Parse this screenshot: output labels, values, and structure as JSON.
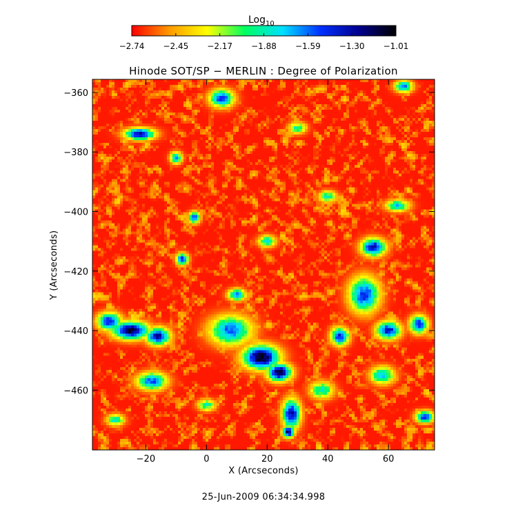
{
  "colorbar": {
    "label_base": "Log",
    "label_sub": "10",
    "ticks": [
      "−2.74",
      "−2.45",
      "−2.17",
      "−1.88",
      "−1.59",
      "−1.30",
      "−1.01"
    ],
    "range": [
      -2.74,
      -1.01
    ],
    "colors": [
      "#ff0000",
      "#ff9a00",
      "#ffff00",
      "#00ff60",
      "#00e0ff",
      "#0030ff",
      "#000090",
      "#000000"
    ]
  },
  "timestamp": "25-Jun-2009 06:34:34.998",
  "chart_data": {
    "type": "heatmap",
    "title": "Hinode SOT/SP − MERLIN : Degree of Polarization",
    "xlabel": "X (Arcseconds)",
    "ylabel": "Y (Arcseconds)",
    "xlim": [
      -37.6,
      75.2
    ],
    "ylim": [
      -480.1,
      -355.6
    ],
    "x_ticks": [
      -20,
      0,
      20,
      40,
      60
    ],
    "x_tick_labels": [
      "−20",
      "0",
      "20",
      "40",
      "60"
    ],
    "y_ticks": [
      -460,
      -440,
      -420,
      -400,
      -380,
      -360
    ],
    "y_tick_labels": [
      "−460",
      "−440",
      "−420",
      "−400",
      "−380",
      "−360"
    ],
    "value_range": [
      -2.74,
      -1.01
    ],
    "background_level": -2.7,
    "features": [
      {
        "x": 18,
        "y": -449,
        "rx": 6,
        "ry": 4,
        "peak": -1.05
      },
      {
        "x": 24,
        "y": -454,
        "rx": 4,
        "ry": 3,
        "peak": -1.1
      },
      {
        "x": 8,
        "y": -440,
        "rx": 7,
        "ry": 5,
        "peak": -1.55
      },
      {
        "x": 28,
        "y": -468,
        "rx": 3,
        "ry": 5,
        "peak": -1.3
      },
      {
        "x": 27,
        "y": -474,
        "rx": 2,
        "ry": 2,
        "peak": -1.15
      },
      {
        "x": -25,
        "y": -440,
        "rx": 6,
        "ry": 3,
        "peak": -1.08
      },
      {
        "x": -16,
        "y": -442,
        "rx": 4,
        "ry": 3,
        "peak": -1.3
      },
      {
        "x": -32,
        "y": -437,
        "rx": 4,
        "ry": 3,
        "peak": -1.4
      },
      {
        "x": -18,
        "y": -457,
        "rx": 5,
        "ry": 3,
        "peak": -1.55
      },
      {
        "x": -22,
        "y": -374,
        "rx": 5,
        "ry": 2,
        "peak": -1.25
      },
      {
        "x": 5,
        "y": -362,
        "rx": 4,
        "ry": 3,
        "peak": -1.45
      },
      {
        "x": -8,
        "y": -416,
        "rx": 2,
        "ry": 2,
        "peak": -1.35
      },
      {
        "x": -4,
        "y": -402,
        "rx": 2,
        "ry": 2,
        "peak": -1.55
      },
      {
        "x": 55,
        "y": -412,
        "rx": 4,
        "ry": 3,
        "peak": -1.3
      },
      {
        "x": 52,
        "y": -428,
        "rx": 5,
        "ry": 6,
        "peak": -1.45
      },
      {
        "x": 60,
        "y": -440,
        "rx": 4,
        "ry": 3,
        "peak": -1.35
      },
      {
        "x": 44,
        "y": -442,
        "rx": 3,
        "ry": 3,
        "peak": -1.4
      },
      {
        "x": 70,
        "y": -438,
        "rx": 3,
        "ry": 3,
        "peak": -1.4
      },
      {
        "x": 72,
        "y": -469,
        "rx": 3,
        "ry": 2,
        "peak": -1.4
      },
      {
        "x": 58,
        "y": -455,
        "rx": 4,
        "ry": 3,
        "peak": -1.7
      },
      {
        "x": 38,
        "y": -460,
        "rx": 4,
        "ry": 3,
        "peak": -1.85
      },
      {
        "x": 63,
        "y": -398,
        "rx": 4,
        "ry": 2,
        "peak": -1.75
      },
      {
        "x": 20,
        "y": -410,
        "rx": 3,
        "ry": 2,
        "peak": -1.8
      },
      {
        "x": 40,
        "y": -395,
        "rx": 3,
        "ry": 2,
        "peak": -1.85
      },
      {
        "x": 30,
        "y": -372,
        "rx": 3,
        "ry": 2,
        "peak": -1.9
      },
      {
        "x": 65,
        "y": -358,
        "rx": 3,
        "ry": 2,
        "peak": -1.6
      },
      {
        "x": -10,
        "y": -382,
        "rx": 2,
        "ry": 2,
        "peak": -1.65
      },
      {
        "x": 10,
        "y": -428,
        "rx": 3,
        "ry": 2,
        "peak": -1.6
      },
      {
        "x": -30,
        "y": -470,
        "rx": 3,
        "ry": 2,
        "peak": -1.85
      },
      {
        "x": 0,
        "y": -465,
        "rx": 3,
        "ry": 2,
        "peak": -1.9
      }
    ]
  }
}
